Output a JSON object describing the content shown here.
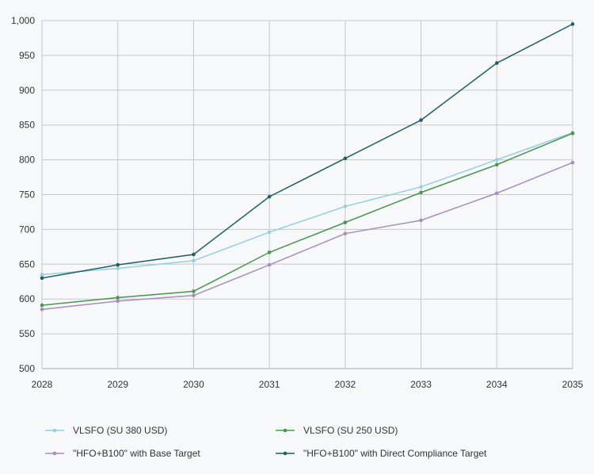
{
  "chart_data": {
    "type": "line",
    "title": "",
    "xlabel": "",
    "ylabel": "",
    "x": [
      "2028",
      "2029",
      "2030",
      "2031",
      "2032",
      "2033",
      "2034",
      "2035"
    ],
    "ylim": [
      500,
      1000
    ],
    "yticks": [
      "500",
      "550",
      "600",
      "650",
      "700",
      "750",
      "800",
      "850",
      "900",
      "950",
      "1,000"
    ],
    "grid": true,
    "legend_position": "bottom",
    "series": [
      {
        "name": "VLSFO (SU 380 USD)",
        "color": "#93d0df",
        "values": [
          635,
          644,
          655,
          696,
          733,
          761,
          800,
          839
        ]
      },
      {
        "name": "VLSFO (SU 250 USD)",
        "color": "#4a9550",
        "values": [
          591,
          602,
          611,
          667,
          710,
          753,
          793,
          838
        ]
      },
      {
        "name": "\"HFO+B100\" with Base Target",
        "color": "#a88cc0",
        "values": [
          585,
          597,
          605,
          649,
          694,
          713,
          752,
          796
        ]
      },
      {
        "name": "\"HFO+B100\" with Direct Compliance Target",
        "color": "#1f5e63",
        "values": [
          630,
          649,
          664,
          747,
          802,
          857,
          939,
          995
        ]
      }
    ]
  }
}
